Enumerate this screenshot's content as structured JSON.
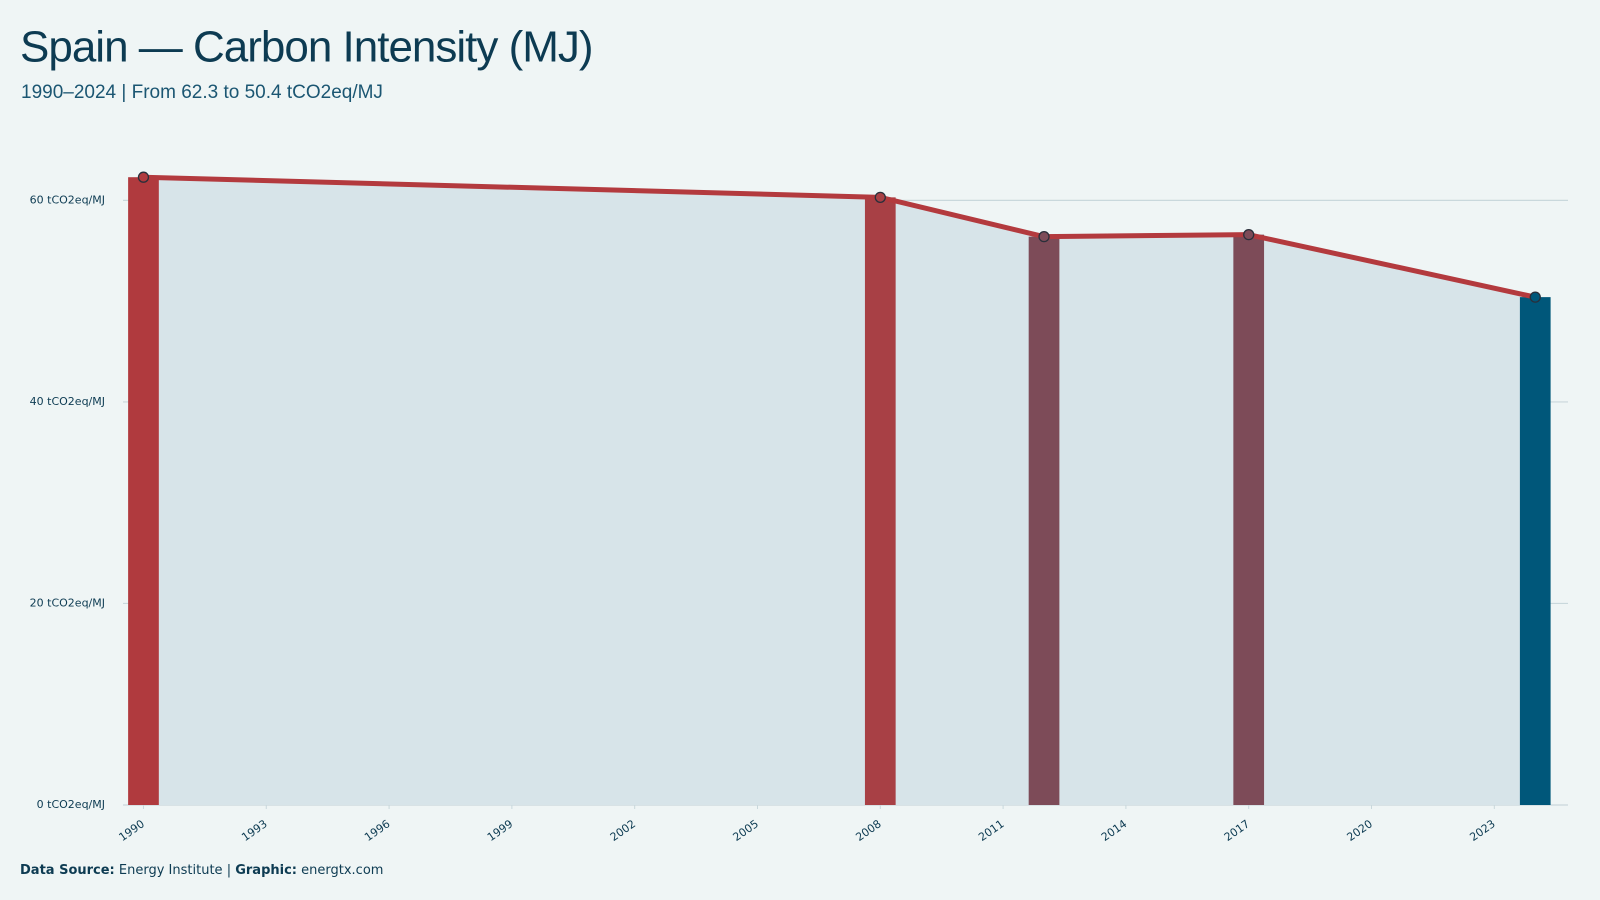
{
  "chart_data": {
    "type": "bar_line",
    "title": "Spain — Carbon Intensity (MJ)",
    "subtitle": "1990–2024 | From 62.3 to 50.4 tCO2eq/MJ",
    "x": [
      1990,
      2008,
      2012,
      2017,
      2024
    ],
    "series": [
      {
        "values": [
          62.3,
          60.3,
          56.4,
          56.6,
          50.4
        ],
        "colors": [
          "#b03a3e",
          "#a84045",
          "#7d4b58",
          "#7d4b58",
          "#00577a"
        ],
        "line_color": "#b33a3e",
        "area_color": "#d7e4e9"
      }
    ],
    "xlim": [
      1989.5,
      2024.8
    ],
    "xticks": [
      1990,
      1993,
      1996,
      1999,
      2002,
      2005,
      2008,
      2011,
      2014,
      2017,
      2020,
      2023
    ],
    "ylim": [
      0,
      65
    ],
    "yticks": [
      {
        "value": 0,
        "label": "0 tCO2eq/MJ"
      },
      {
        "value": 20,
        "label": "20 tCO2eq/MJ"
      },
      {
        "value": 40,
        "label": "40 tCO2eq/MJ"
      },
      {
        "value": 60,
        "label": "60 tCO2eq/MJ"
      }
    ],
    "grid": true,
    "footer": {
      "source_label": "Data Source:",
      "source": "Energy Institute",
      "separator": "|",
      "graphic_label": "Graphic:",
      "graphic": "energtx.com"
    }
  }
}
